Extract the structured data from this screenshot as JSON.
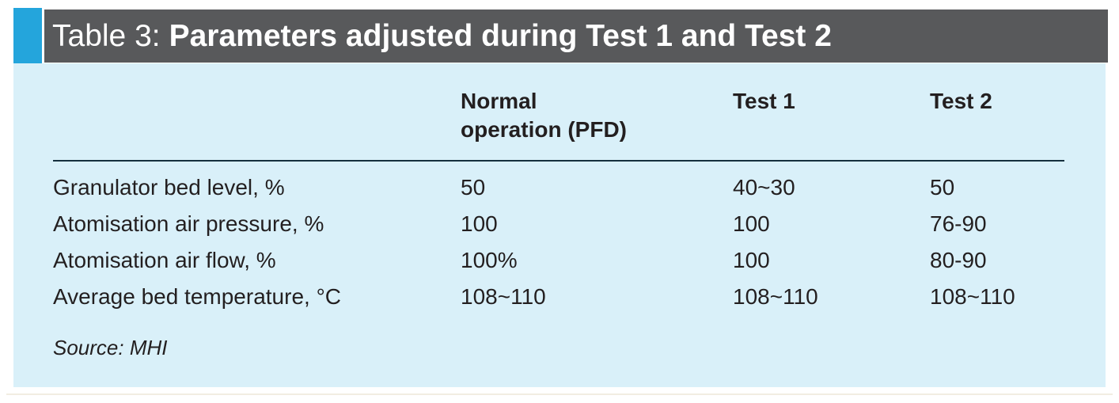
{
  "title": {
    "prefix": "Table 3:",
    "bold": "Parameters adjusted during Test 1 and Test 2"
  },
  "table": {
    "headers": [
      "",
      "Normal\noperation (PFD)",
      "Test 1",
      "Test 2"
    ],
    "rows": [
      {
        "label": "Granulator bed level, %",
        "values": [
          "50",
          "40~30",
          "50"
        ]
      },
      {
        "label": "Atomisation air pressure, %",
        "values": [
          "100",
          "100",
          "76-90"
        ]
      },
      {
        "label": "Atomisation air flow, %",
        "values": [
          "100%",
          "100",
          "80-90"
        ]
      },
      {
        "label": "Average bed temperature, °C",
        "values": [
          "108~110",
          "108~110",
          "108~110"
        ]
      }
    ],
    "source": "Source: MHI"
  },
  "colors": {
    "accent": "#24a5dc",
    "title_bar_bg": "#58595b",
    "title_text": "#ffffff",
    "panel_bg": "#d9f0f9",
    "body_text": "#231f20",
    "header_rule": "#15303e"
  }
}
